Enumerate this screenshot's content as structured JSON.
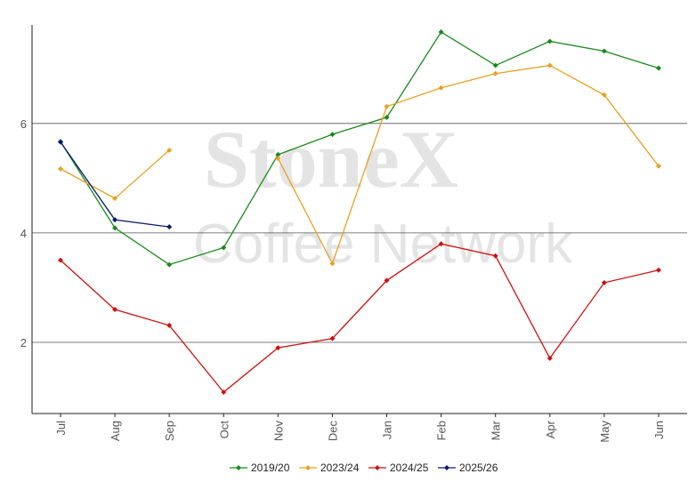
{
  "chart_data": {
    "type": "line",
    "watermark": [
      "StoneX",
      "Coffee Network"
    ],
    "categories": [
      "Jul",
      "Aug",
      "Sep",
      "Oct",
      "Nov",
      "Dec",
      "Jan",
      "Feb",
      "Mar",
      "Apr",
      "May",
      "Jun"
    ],
    "ylim": [
      0.7,
      7.8
    ],
    "yticks": [
      2,
      4,
      6
    ],
    "grid": true,
    "legend": "bottom",
    "series": [
      {
        "name": "2019/20",
        "color": "#1a8a1a",
        "values": [
          5.67,
          4.09,
          3.42,
          3.73,
          5.43,
          5.8,
          6.11,
          7.67,
          7.06,
          7.5,
          7.32,
          7.01
        ]
      },
      {
        "name": "2023/24",
        "color": "#e8a020",
        "values": [
          5.17,
          4.63,
          5.51,
          null,
          5.36,
          3.44,
          6.31,
          6.65,
          6.91,
          7.06,
          6.52,
          5.22
        ]
      },
      {
        "name": "2024/25",
        "color": "#d01010",
        "values": [
          3.5,
          2.6,
          2.31,
          1.09,
          1.9,
          2.07,
          3.13,
          3.8,
          3.58,
          1.71,
          3.09,
          3.32
        ]
      },
      {
        "name": "2025/26",
        "color": "#0a1a6e",
        "values": [
          5.66,
          4.24,
          4.11,
          null,
          null,
          null,
          null,
          null,
          null,
          null,
          null,
          null
        ]
      }
    ]
  }
}
